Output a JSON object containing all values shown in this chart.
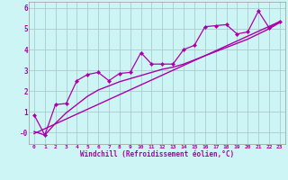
{
  "bg_color": "#cef5f5",
  "grid_color": "#aacccc",
  "line_color": "#aa00aa",
  "marker_color": "#aa00aa",
  "xlabel": "Windchill (Refroidissement éolien,°C)",
  "xlabel_color": "#aa00aa",
  "xlim": [
    -0.5,
    23.5
  ],
  "ylim": [
    -0.55,
    6.3
  ],
  "yticks": [
    0,
    1,
    2,
    3,
    4,
    5,
    6
  ],
  "xticks": [
    0,
    1,
    2,
    3,
    4,
    5,
    6,
    7,
    8,
    9,
    10,
    11,
    12,
    13,
    14,
    15,
    16,
    17,
    18,
    19,
    20,
    21,
    22,
    23
  ],
  "series1_x": [
    0,
    1,
    2,
    3,
    4,
    5,
    6,
    7,
    8,
    9,
    10,
    11,
    12,
    13,
    14,
    15,
    16,
    17,
    18,
    19,
    20,
    21,
    22,
    23
  ],
  "series1_y": [
    0.85,
    -0.12,
    1.35,
    1.4,
    2.5,
    2.8,
    2.9,
    2.5,
    2.85,
    2.9,
    3.85,
    3.3,
    3.3,
    3.3,
    4.0,
    4.2,
    5.1,
    5.15,
    5.2,
    4.75,
    4.85,
    5.85,
    5.05,
    5.35
  ],
  "series2_x": [
    0,
    1,
    2,
    3,
    4,
    5,
    6,
    7,
    8,
    9,
    10,
    11,
    12,
    13,
    14,
    15,
    16,
    17,
    18,
    19,
    20,
    21,
    22,
    23
  ],
  "series2_y": [
    0.05,
    -0.12,
    0.45,
    0.95,
    1.35,
    1.75,
    2.05,
    2.25,
    2.45,
    2.6,
    2.75,
    2.9,
    3.05,
    3.15,
    3.3,
    3.5,
    3.7,
    3.9,
    4.1,
    4.3,
    4.5,
    4.75,
    5.0,
    5.3
  ],
  "series3_x": [
    0,
    23
  ],
  "series3_y": [
    -0.05,
    5.35
  ]
}
